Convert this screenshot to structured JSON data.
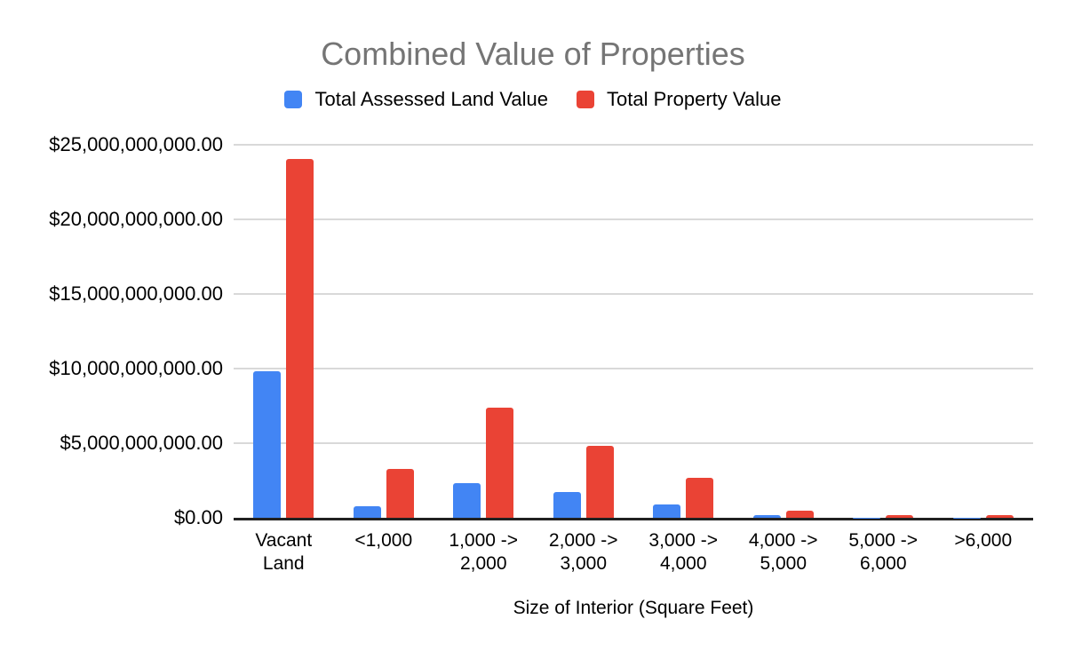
{
  "chart_data": {
    "type": "bar",
    "title": "Combined Value of Properties",
    "xlabel": "Size of Interior (Square Feet)",
    "ylabel": "",
    "categories": [
      "Vacant\nLand",
      "<1,000",
      "1,000 ->\n2,000",
      "2,000 ->\n3,000",
      "3,000 ->\n4,000",
      "4,000 ->\n5,000",
      "5,000 ->\n6,000",
      ">6,000"
    ],
    "series": [
      {
        "name": "Total Assessed Land Value",
        "color": "#4285F4",
        "values": [
          9850000000,
          750000000,
          2300000000,
          1700000000,
          900000000,
          150000000,
          20000000,
          20000000
        ]
      },
      {
        "name": "Total Property Value",
        "color": "#EA4335",
        "values": [
          24050000000,
          3250000000,
          7400000000,
          4850000000,
          2700000000,
          450000000,
          150000000,
          150000000
        ]
      }
    ],
    "ylim": [
      0,
      25000000000
    ],
    "y_ticks": [
      {
        "value": 0,
        "label": "$0.00"
      },
      {
        "value": 5000000000,
        "label": "$5,000,000,000.00"
      },
      {
        "value": 10000000000,
        "label": "$10,000,000,000.00"
      },
      {
        "value": 15000000000,
        "label": "$15,000,000,000.00"
      },
      {
        "value": 20000000000,
        "label": "$20,000,000,000.00"
      },
      {
        "value": 25000000000,
        "label": "$25,000,000,000.00"
      }
    ],
    "grid": "horizontal",
    "legend_position": "top",
    "colors": {
      "title_gray": "#757575",
      "gridline": "#d9d9d9",
      "axis_line": "#212121",
      "text": "#000000",
      "background": "#ffffff"
    }
  }
}
